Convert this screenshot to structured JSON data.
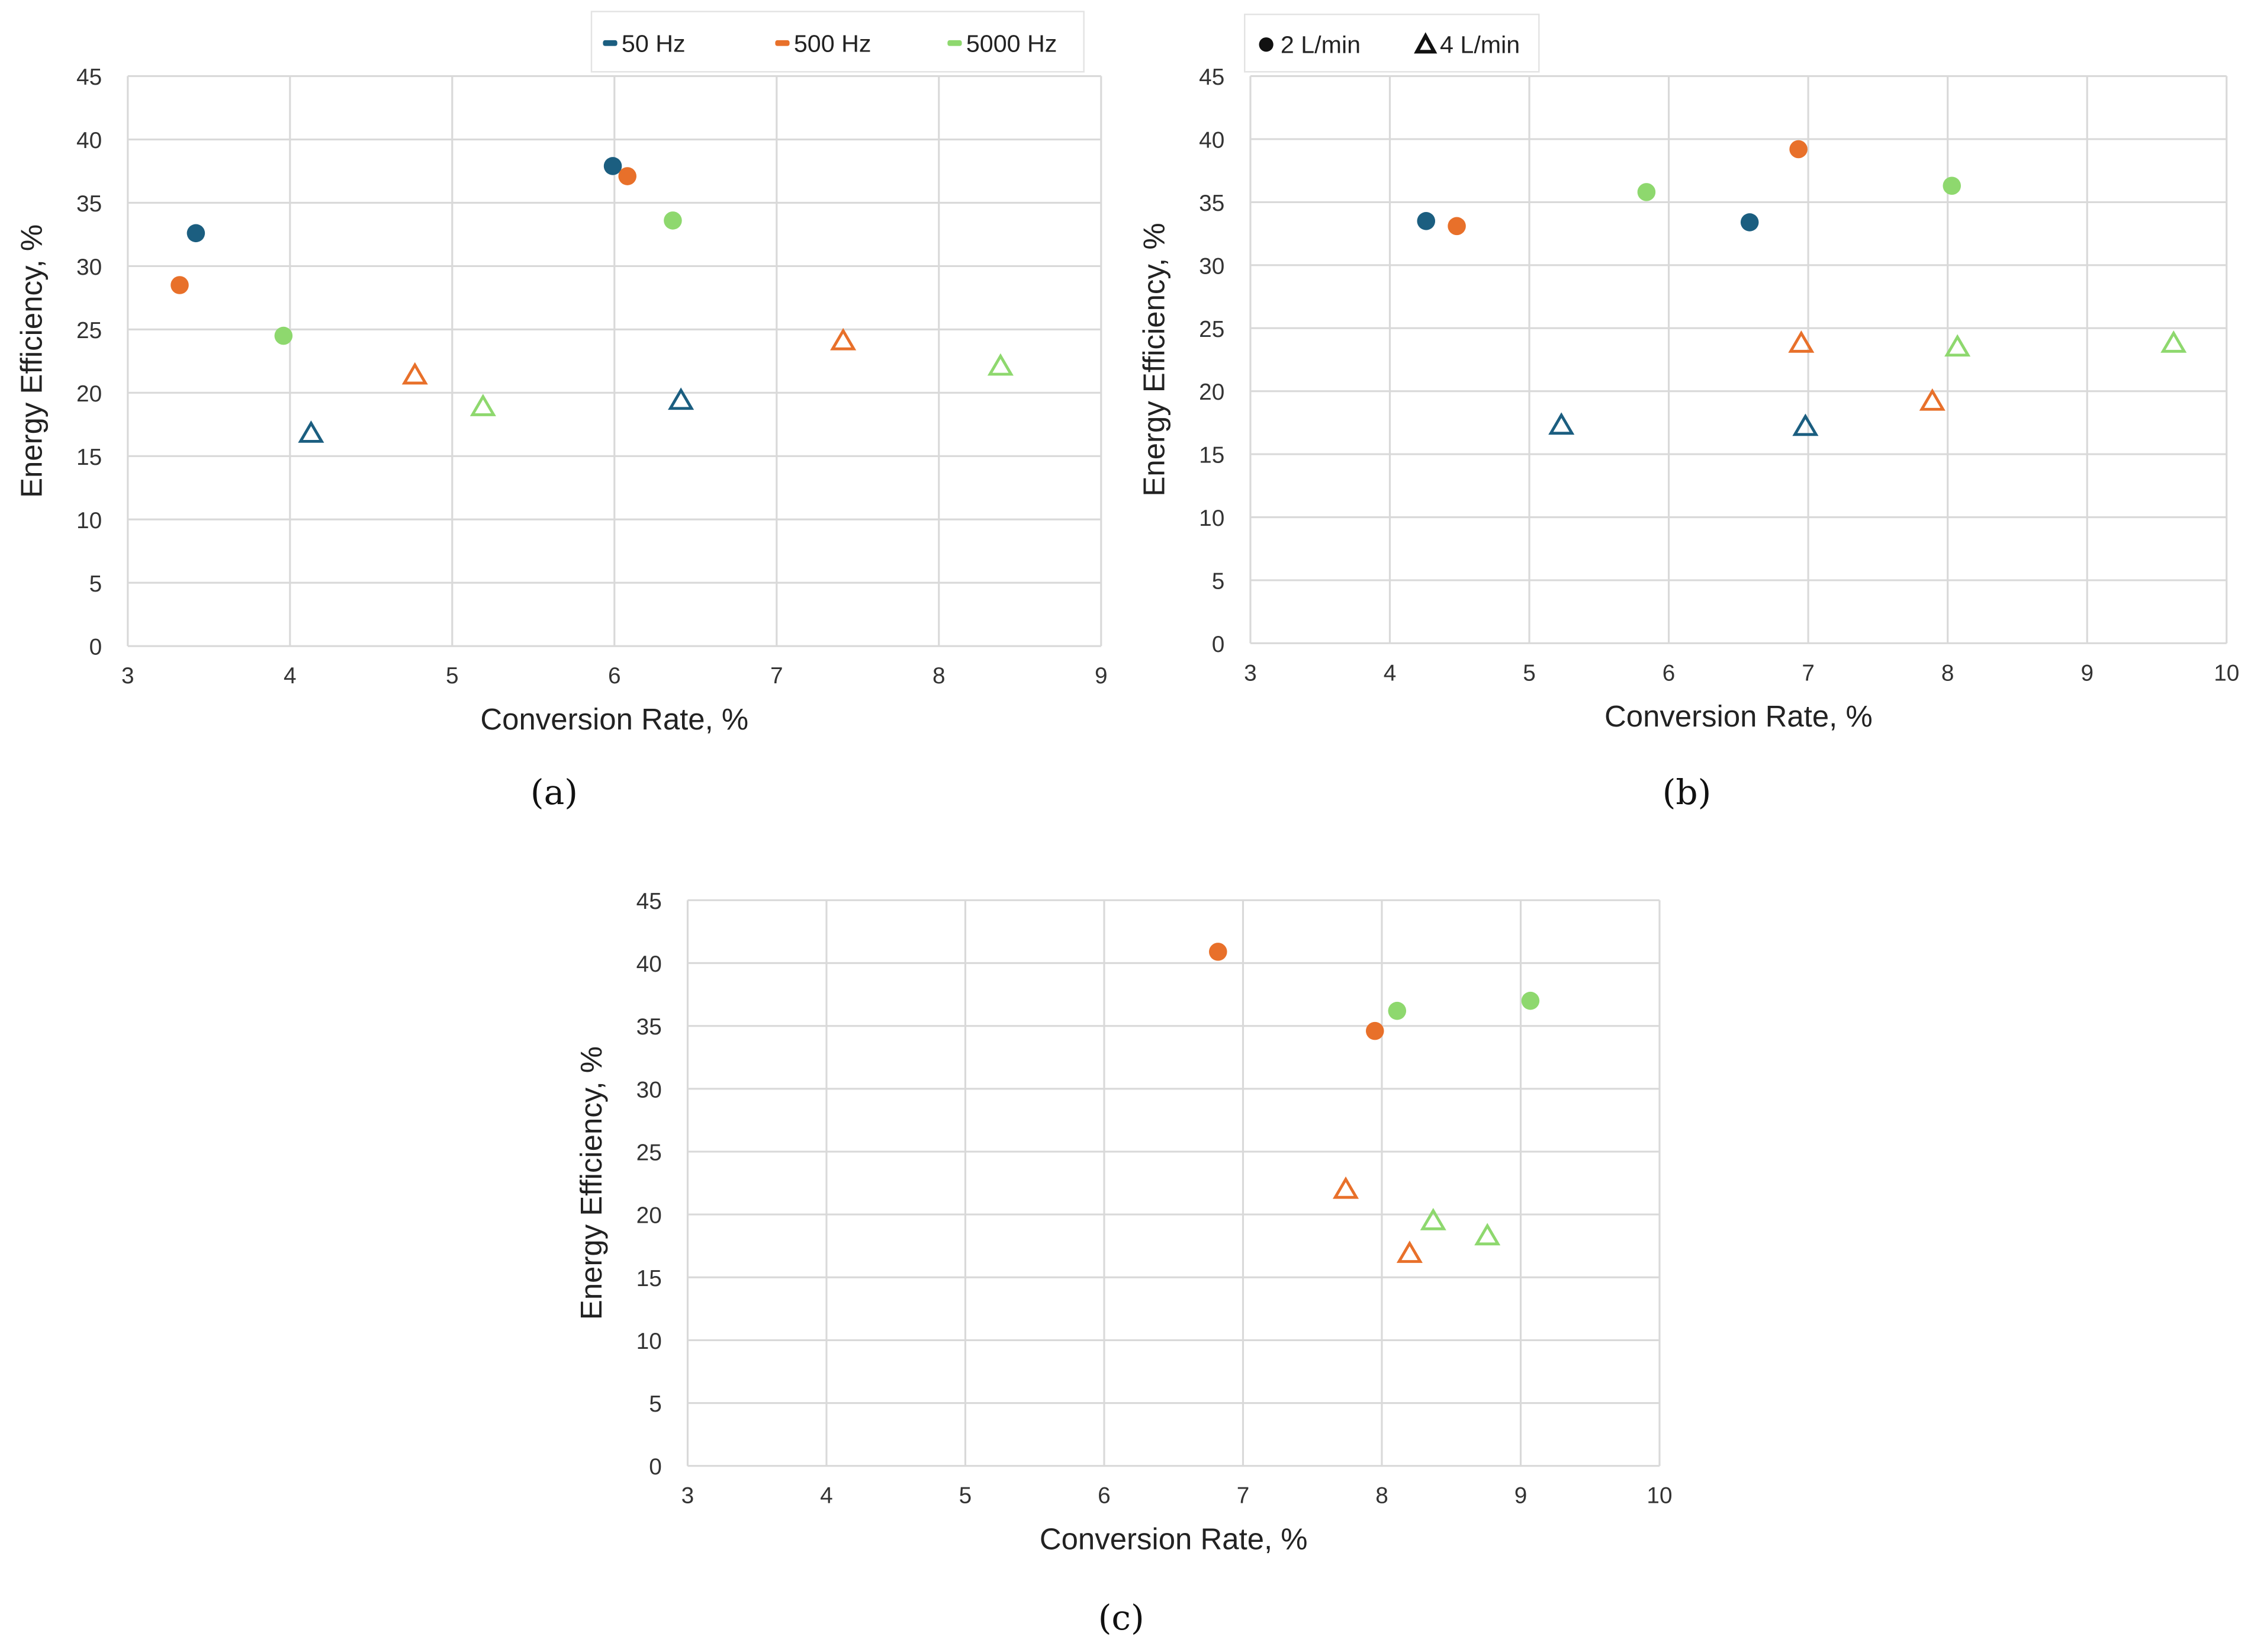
{
  "colors": {
    "50 Hz": "#1b5e80",
    "500 Hz": "#e8702a",
    "5000 Hz": "#8ed86e",
    "grid": "#d9d9d9"
  },
  "legend_frequency": [
    "50 Hz",
    "500 Hz",
    "5000 Hz"
  ],
  "legend_flow": [
    {
      "marker": "circle",
      "label": "2 L/min"
    },
    {
      "marker": "triangle",
      "label": "4 L/min"
    }
  ],
  "chart_data": [
    {
      "type": "scatter",
      "panel": "(a)",
      "xlabel": "Conversion Rate, %",
      "ylabel": "Energy Efficiency, %",
      "xlim": [
        3,
        9
      ],
      "ylim": [
        0,
        45
      ],
      "xticks": [
        3,
        4,
        5,
        6,
        7,
        8,
        9
      ],
      "yticks": [
        0,
        5,
        10,
        15,
        20,
        25,
        30,
        35,
        40,
        45
      ],
      "grid": true,
      "legend": "frequency",
      "legend_placement": "top-right",
      "points": [
        {
          "freq": "50 Hz",
          "flow": "2 L/min",
          "x": 3.42,
          "y": 32.6
        },
        {
          "freq": "50 Hz",
          "flow": "2 L/min",
          "x": 5.99,
          "y": 37.9
        },
        {
          "freq": "500 Hz",
          "flow": "2 L/min",
          "x": 3.32,
          "y": 28.5
        },
        {
          "freq": "500 Hz",
          "flow": "2 L/min",
          "x": 6.08,
          "y": 37.1
        },
        {
          "freq": "5000 Hz",
          "flow": "2 L/min",
          "x": 3.96,
          "y": 24.5
        },
        {
          "freq": "5000 Hz",
          "flow": "2 L/min",
          "x": 6.36,
          "y": 33.6
        },
        {
          "freq": "50 Hz",
          "flow": "4 L/min",
          "x": 4.13,
          "y": 16.8
        },
        {
          "freq": "50 Hz",
          "flow": "4 L/min",
          "x": 6.41,
          "y": 19.4
        },
        {
          "freq": "500 Hz",
          "flow": "4 L/min",
          "x": 4.77,
          "y": 21.4
        },
        {
          "freq": "500 Hz",
          "flow": "4 L/min",
          "x": 7.41,
          "y": 24.1
        },
        {
          "freq": "5000 Hz",
          "flow": "4 L/min",
          "x": 5.19,
          "y": 18.9
        },
        {
          "freq": "5000 Hz",
          "flow": "4 L/min",
          "x": 8.38,
          "y": 22.1
        }
      ]
    },
    {
      "type": "scatter",
      "panel": "(b)",
      "xlabel": "Conversion Rate, %",
      "ylabel": "Energy Efficiency, %",
      "xlim": [
        3,
        10
      ],
      "ylim": [
        0,
        45
      ],
      "xticks": [
        3,
        4,
        5,
        6,
        7,
        8,
        9,
        10
      ],
      "yticks": [
        0,
        5,
        10,
        15,
        20,
        25,
        30,
        35,
        40,
        45
      ],
      "grid": true,
      "legend": "flow",
      "legend_placement": "top-left",
      "points": [
        {
          "freq": "50 Hz",
          "flow": "2 L/min",
          "x": 4.26,
          "y": 33.5
        },
        {
          "freq": "50 Hz",
          "flow": "2 L/min",
          "x": 6.58,
          "y": 33.4
        },
        {
          "freq": "500 Hz",
          "flow": "2 L/min",
          "x": 4.48,
          "y": 33.1
        },
        {
          "freq": "500 Hz",
          "flow": "2 L/min",
          "x": 6.93,
          "y": 39.2
        },
        {
          "freq": "5000 Hz",
          "flow": "2 L/min",
          "x": 5.84,
          "y": 35.8
        },
        {
          "freq": "5000 Hz",
          "flow": "2 L/min",
          "x": 8.03,
          "y": 36.3
        },
        {
          "freq": "50 Hz",
          "flow": "4 L/min",
          "x": 5.23,
          "y": 17.3
        },
        {
          "freq": "50 Hz",
          "flow": "4 L/min",
          "x": 6.98,
          "y": 17.2
        },
        {
          "freq": "500 Hz",
          "flow": "4 L/min",
          "x": 6.95,
          "y": 23.8
        },
        {
          "freq": "500 Hz",
          "flow": "4 L/min",
          "x": 7.89,
          "y": 19.2
        },
        {
          "freq": "5000 Hz",
          "flow": "4 L/min",
          "x": 8.07,
          "y": 23.5
        },
        {
          "freq": "5000 Hz",
          "flow": "4 L/min",
          "x": 9.62,
          "y": 23.8
        }
      ]
    },
    {
      "type": "scatter",
      "panel": "(c)",
      "xlabel": "Conversion Rate, %",
      "ylabel": "Energy Efficiency, %",
      "xlim": [
        3,
        10
      ],
      "ylim": [
        0,
        45
      ],
      "xticks": [
        3,
        4,
        5,
        6,
        7,
        8,
        9,
        10
      ],
      "yticks": [
        0,
        5,
        10,
        15,
        20,
        25,
        30,
        35,
        40,
        45
      ],
      "grid": true,
      "legend": "none",
      "points": [
        {
          "freq": "500 Hz",
          "flow": "2 L/min",
          "x": 6.82,
          "y": 40.9
        },
        {
          "freq": "500 Hz",
          "flow": "2 L/min",
          "x": 7.95,
          "y": 34.6
        },
        {
          "freq": "5000 Hz",
          "flow": "2 L/min",
          "x": 8.11,
          "y": 36.2
        },
        {
          "freq": "5000 Hz",
          "flow": "2 L/min",
          "x": 9.07,
          "y": 37.0
        },
        {
          "freq": "500 Hz",
          "flow": "4 L/min",
          "x": 7.74,
          "y": 22.0
        },
        {
          "freq": "500 Hz",
          "flow": "4 L/min",
          "x": 8.2,
          "y": 16.9
        },
        {
          "freq": "5000 Hz",
          "flow": "4 L/min",
          "x": 8.37,
          "y": 19.5
        },
        {
          "freq": "5000 Hz",
          "flow": "4 L/min",
          "x": 8.76,
          "y": 18.3
        }
      ]
    }
  ]
}
